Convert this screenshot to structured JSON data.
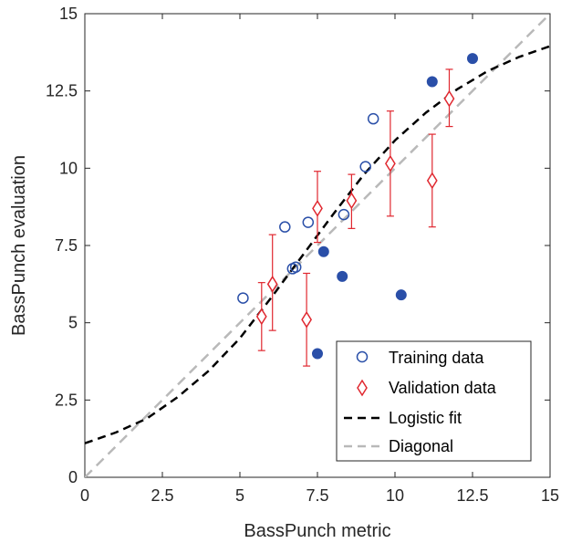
{
  "chart_data": {
    "type": "scatter",
    "title": "",
    "xlabel": "BassPunch metric",
    "ylabel": "BassPunch evaluation",
    "xlim": [
      0,
      15
    ],
    "ylim": [
      0,
      15
    ],
    "xticks": [
      0,
      2.5,
      5,
      7.5,
      10,
      12.5,
      15
    ],
    "yticks": [
      0,
      2.5,
      5,
      7.5,
      10,
      12.5,
      15
    ],
    "xtick_labels": [
      "0",
      "2.5",
      "5",
      "7.5",
      "10",
      "12.5",
      "15"
    ],
    "ytick_labels": [
      "0",
      "2.5",
      "5",
      "7.5",
      "10",
      "12.5",
      "15"
    ],
    "grid": false,
    "legend_position": "bottom-right",
    "series": [
      {
        "name": "Training data",
        "marker": "open-circle",
        "color": "#2a4fa8",
        "x": [
          5.1,
          6.45,
          6.7,
          6.8,
          7.2,
          8.35,
          9.05,
          9.3
        ],
        "y": [
          5.8,
          8.1,
          6.75,
          6.8,
          8.25,
          8.5,
          10.05,
          11.6
        ]
      },
      {
        "name": "",
        "marker": "filled-circle",
        "color": "#2a4fa8",
        "x": [
          7.5,
          7.7,
          8.3,
          10.2,
          11.2,
          12.5
        ],
        "y": [
          4.0,
          7.3,
          6.5,
          5.9,
          12.8,
          13.55
        ]
      },
      {
        "name": "Validation data",
        "marker": "diamond",
        "color": "#e0272f",
        "x": [
          5.7,
          6.05,
          7.15,
          7.5,
          8.6,
          9.85,
          11.2,
          11.75
        ],
        "y": [
          5.2,
          6.25,
          5.1,
          8.7,
          8.95,
          10.15,
          9.6,
          12.25
        ],
        "err_low": [
          1.1,
          1.5,
          1.5,
          1.1,
          0.9,
          1.7,
          1.5,
          0.9
        ],
        "err_high": [
          1.1,
          1.6,
          1.5,
          1.2,
          0.85,
          1.7,
          1.5,
          0.95
        ]
      },
      {
        "name": "Logistic fit",
        "style": "dashed",
        "color": "#000000",
        "x": [
          0,
          1,
          2,
          3,
          4,
          5,
          6,
          7,
          8,
          9,
          10,
          11,
          12,
          13,
          14,
          15
        ],
        "y": [
          1.1,
          1.45,
          1.9,
          2.6,
          3.45,
          4.5,
          5.8,
          7.15,
          8.5,
          9.8,
          10.9,
          11.8,
          12.55,
          13.15,
          13.6,
          13.95
        ]
      },
      {
        "name": "Diagonal",
        "style": "dashed",
        "color": "#b9b9b9",
        "x": [
          0,
          15
        ],
        "y": [
          0,
          15
        ]
      }
    ]
  }
}
